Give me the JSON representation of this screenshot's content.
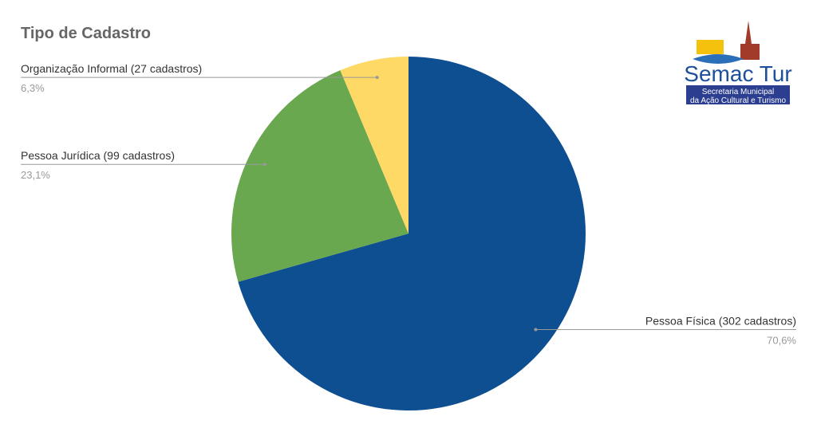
{
  "chart_data": {
    "type": "pie",
    "title": "Tipo de Cadastro",
    "categories": [
      "Pessoa Física (302 cadastros)",
      "Pessoa Jurídica (99 cadastros)",
      "Organização Informal (27 cadastros)"
    ],
    "values": [
      70.6,
      23.1,
      6.3
    ],
    "value_labels": [
      "70,6%",
      "23,1%",
      "6,3%"
    ],
    "colors": [
      "#0e4f92",
      "#6aa84f",
      "#ffd966"
    ]
  },
  "logo": {
    "name": "Semac Tur",
    "lines": [
      "Secretaria Municipal",
      "da Ação Cultural e Turismo"
    ]
  }
}
